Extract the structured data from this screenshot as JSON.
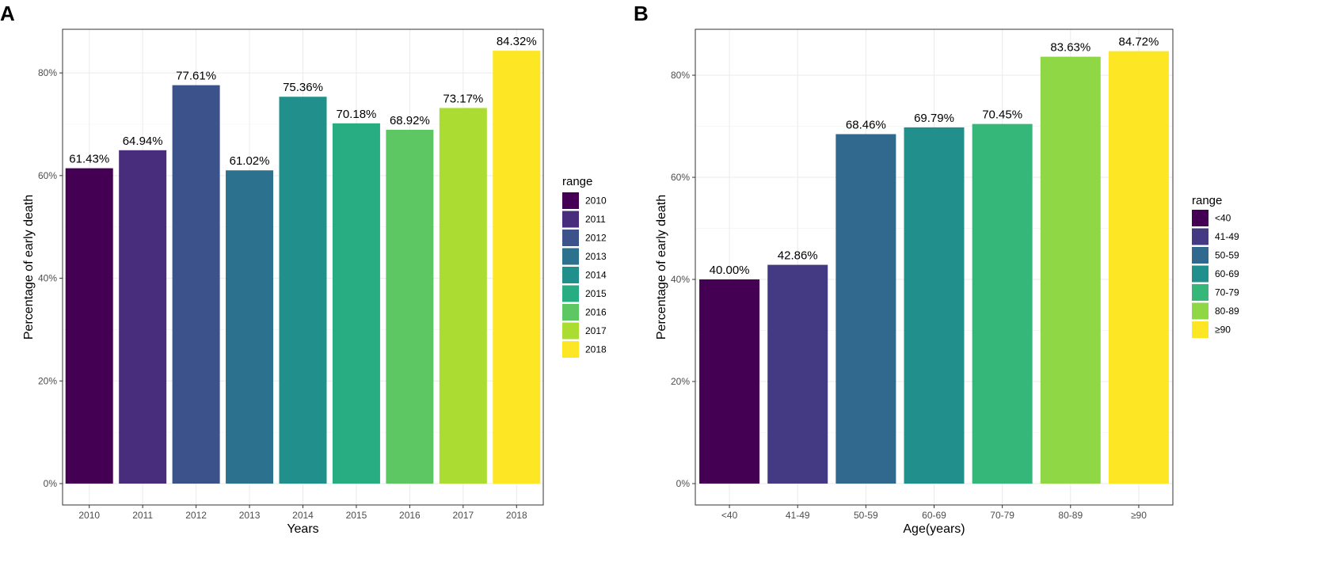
{
  "chart_data": [
    {
      "panel": "A",
      "type": "bar",
      "title": "",
      "xlabel": "Years",
      "ylabel": "Percentage of early death",
      "categories": [
        "2010",
        "2011",
        "2012",
        "2013",
        "2014",
        "2015",
        "2016",
        "2017",
        "2018"
      ],
      "values": [
        61.43,
        64.94,
        77.61,
        61.02,
        75.36,
        70.18,
        68.92,
        73.17,
        84.32
      ],
      "data_labels": [
        "61.43%",
        "64.94%",
        "77.61%",
        "61.02%",
        "75.36%",
        "70.18%",
        "68.92%",
        "73.17%",
        "84.32%"
      ],
      "colors": [
        "#440154",
        "#472D7B",
        "#3B528B",
        "#2C728E",
        "#21908C",
        "#27AD81",
        "#5DC863",
        "#AADC32",
        "#FDE725"
      ],
      "ylim": [
        0,
        88.5
      ],
      "yticks": [
        0,
        20,
        40,
        60,
        80
      ],
      "ytick_labels": [
        "0%",
        "20%",
        "40%",
        "60%",
        "80%"
      ],
      "grid": true,
      "legend": {
        "title": "range",
        "position": "right",
        "labels": [
          "2010",
          "2011",
          "2012",
          "2013",
          "2014",
          "2015",
          "2016",
          "2017",
          "2018"
        ]
      }
    },
    {
      "panel": "B",
      "type": "bar",
      "title": "",
      "xlabel": "Age(years)",
      "ylabel": "Percentage of early death",
      "categories": [
        "<40",
        "41-49",
        "50-59",
        "60-69",
        "70-79",
        "80-89",
        "≥90"
      ],
      "values": [
        40.0,
        42.86,
        68.46,
        69.79,
        70.45,
        83.63,
        84.72
      ],
      "data_labels": [
        "40.00%",
        "42.86%",
        "68.46%",
        "69.79%",
        "70.45%",
        "83.63%",
        "84.72%"
      ],
      "colors": [
        "#440154",
        "#443A83",
        "#31688E",
        "#21908C",
        "#35B779",
        "#8FD744",
        "#FDE725"
      ],
      "ylim": [
        0,
        89
      ],
      "yticks": [
        0,
        20,
        40,
        60,
        80
      ],
      "ytick_labels": [
        "0%",
        "20%",
        "40%",
        "60%",
        "80%"
      ],
      "grid": true,
      "legend": {
        "title": "range",
        "position": "right",
        "labels": [
          "<40",
          "41-49",
          "50-59",
          "60-69",
          "70-79",
          "80-89",
          "≥90"
        ]
      }
    }
  ]
}
